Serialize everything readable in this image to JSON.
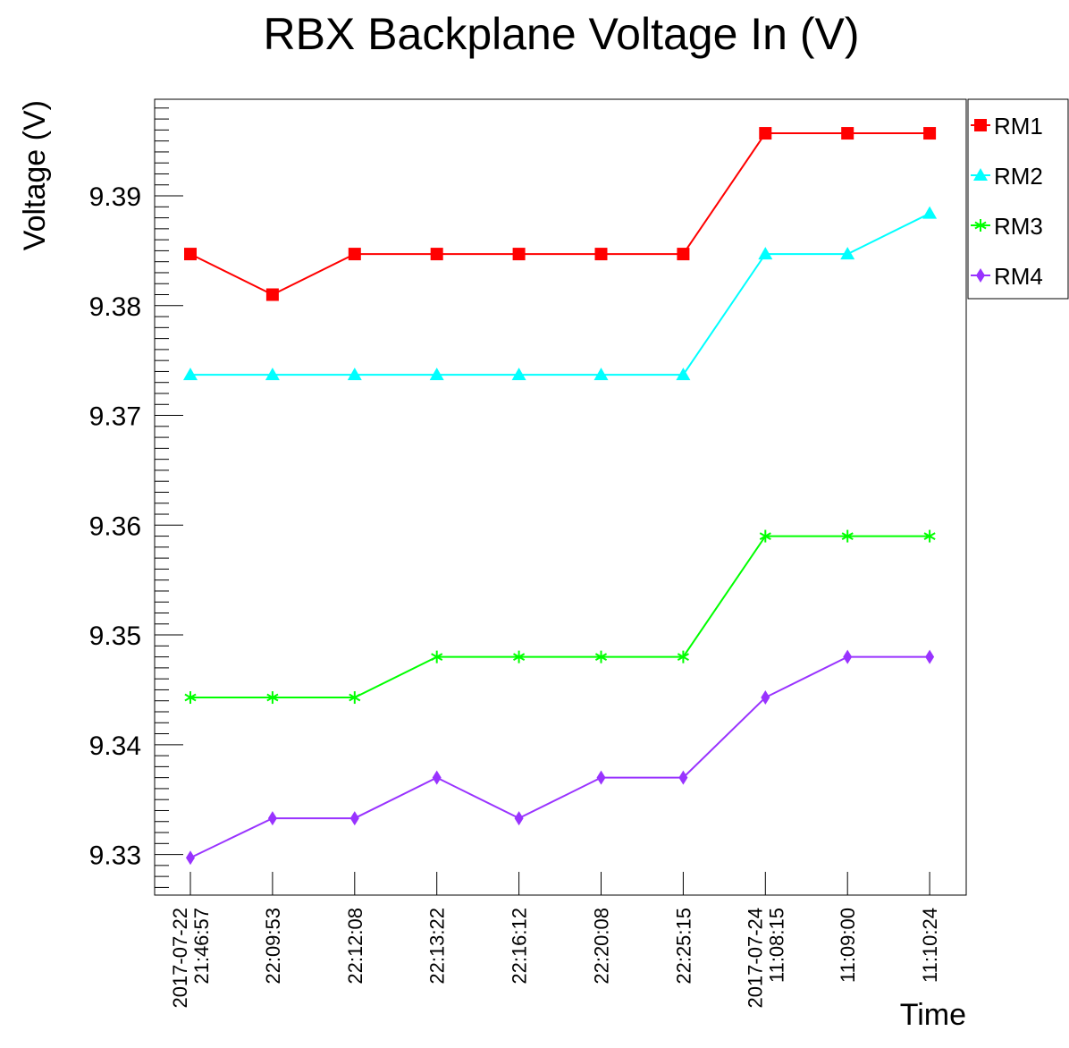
{
  "chart_data": {
    "type": "line",
    "title": "RBX Backplane Voltage In (V)",
    "xlabel": "Time",
    "ylabel": "Voltage (V)",
    "x_tick_labels": [
      [
        "2017-07-22",
        "21:46:57"
      ],
      [
        "22:09:53"
      ],
      [
        "22:12:08"
      ],
      [
        "22:13:22"
      ],
      [
        "22:16:12"
      ],
      [
        "22:20:08"
      ],
      [
        "22:25:15"
      ],
      [
        "2017-07-24",
        "11:08:15"
      ],
      [
        "11:09:00"
      ],
      [
        "11:10:24"
      ]
    ],
    "x": [
      0,
      1,
      2,
      3,
      4,
      5,
      6,
      7,
      8,
      9
    ],
    "ylim": [
      9.3263,
      9.3988
    ],
    "y_ticks": [
      9.33,
      9.34,
      9.35,
      9.36,
      9.37,
      9.38,
      9.39
    ],
    "y_tick_labels": [
      "9.33",
      "9.34",
      "9.35",
      "9.36",
      "9.37",
      "9.38",
      "9.39"
    ],
    "grid": false,
    "legend_position": "top-right",
    "series": [
      {
        "name": "RM1",
        "color": "#ff0000",
        "marker": "square",
        "values": [
          9.3847,
          9.381,
          9.3847,
          9.3847,
          9.3847,
          9.3847,
          9.3847,
          9.3957,
          9.3957,
          9.3957
        ]
      },
      {
        "name": "RM2",
        "color": "#00ffff",
        "marker": "triangle",
        "values": [
          9.3737,
          9.3737,
          9.3737,
          9.3737,
          9.3737,
          9.3737,
          9.3737,
          9.3847,
          9.3847,
          9.3884
        ]
      },
      {
        "name": "RM3",
        "color": "#00ff00",
        "marker": "star",
        "values": [
          9.3443,
          9.3443,
          9.3443,
          9.348,
          9.348,
          9.348,
          9.348,
          9.359,
          9.359,
          9.359
        ]
      },
      {
        "name": "RM4",
        "color": "#9933ff",
        "marker": "diamond",
        "values": [
          9.3297,
          9.3333,
          9.3333,
          9.337,
          9.3333,
          9.337,
          9.337,
          9.3443,
          9.348,
          9.348
        ]
      }
    ]
  }
}
